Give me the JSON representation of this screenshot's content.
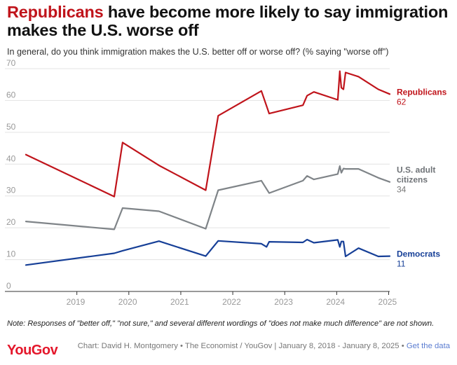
{
  "title": {
    "highlight": "Republicans",
    "rest": " have become more likely to say immigration makes the U.S. worse off"
  },
  "subtitle": "In general, do you think immigration makes the U.S. better off or worse off? (% saying \"worse off\")",
  "note": "Note: Responses of \"better off,\" \"not sure,\" and several different wordings of \"does not make much difference\" are not shown.",
  "footer": {
    "logo": "YouGov",
    "credit": "Chart: David H. Montgomery • The Economist / YouGov | January 8, 2018 - January 8, 2025 •",
    "link": "Get the data"
  },
  "chart_data": {
    "type": "line",
    "title": "Republicans have become more likely to say immigration makes the U.S. worse off",
    "xlabel": "",
    "ylabel": "% saying \"worse off\"",
    "xlim": [
      2018.02,
      2025.02
    ],
    "ylim": [
      0,
      70
    ],
    "x_ticks": [
      2019,
      2020,
      2021,
      2022,
      2023,
      2024,
      2025
    ],
    "y_ticks": [
      0,
      10,
      20,
      30,
      40,
      50,
      60,
      70
    ],
    "grid": true,
    "series": [
      {
        "name": "Republicans",
        "label_lines": [
          "Republicans"
        ],
        "end_value": "62",
        "color": "#c0141b",
        "x": [
          2018.02,
          2019.72,
          2019.88,
          2020.58,
          2021.48,
          2021.72,
          2022.55,
          2022.7,
          2023.35,
          2023.43,
          2023.56,
          2024.02,
          2024.06,
          2024.09,
          2024.13,
          2024.17,
          2024.42,
          2024.8,
          2025.02
        ],
        "values": [
          43,
          29.8,
          46.8,
          39.6,
          31.8,
          55.2,
          63,
          55.9,
          58.5,
          61.5,
          62.7,
          60.2,
          69.2,
          64,
          63.5,
          68.8,
          67.5,
          63.5,
          62
        ]
      },
      {
        "name": "U.S. adult citizens",
        "label_lines": [
          "U.S. adult",
          "citizens"
        ],
        "end_value": "34",
        "color": "#7f8488",
        "x": [
          2018.02,
          2019.72,
          2019.88,
          2020.58,
          2021.48,
          2021.72,
          2022.55,
          2022.7,
          2023.35,
          2023.43,
          2023.56,
          2024.02,
          2024.06,
          2024.09,
          2024.13,
          2024.17,
          2024.42,
          2024.8,
          2025.02
        ],
        "values": [
          22,
          19.5,
          26.2,
          25.2,
          19.7,
          31.8,
          34.8,
          30.9,
          34.8,
          36.3,
          35.2,
          36.9,
          39.4,
          37.3,
          38.6,
          38.5,
          38.5,
          35.7,
          34.4
        ]
      },
      {
        "name": "Democrats",
        "label_lines": [
          "Democrats"
        ],
        "end_value": "11",
        "color": "#163f97",
        "x": [
          2018.02,
          2019.72,
          2019.88,
          2020.58,
          2021.48,
          2021.72,
          2022.55,
          2022.65,
          2022.7,
          2023.35,
          2023.43,
          2023.56,
          2024.02,
          2024.06,
          2024.09,
          2024.13,
          2024.17,
          2024.42,
          2024.8,
          2025.02
        ],
        "values": [
          8.3,
          12,
          12.8,
          15.8,
          11.1,
          15.9,
          15,
          14,
          15.6,
          15.4,
          16.3,
          15.3,
          16.2,
          14,
          15.7,
          15.7,
          11,
          13.6,
          11,
          11.1
        ]
      }
    ]
  }
}
